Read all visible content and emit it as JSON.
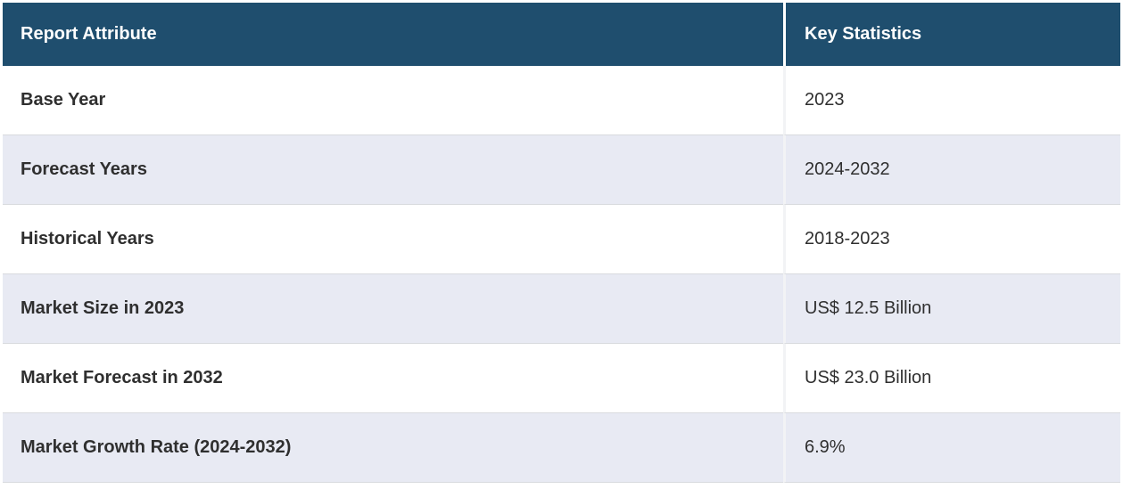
{
  "table": {
    "columns": [
      {
        "label": "Report Attribute"
      },
      {
        "label": "Key Statistics"
      }
    ],
    "rows": [
      {
        "attribute": "Base Year",
        "value": "2023"
      },
      {
        "attribute": "Forecast Years",
        "value": "2024-2032"
      },
      {
        "attribute": "Historical Years",
        "value": "2018-2023"
      },
      {
        "attribute": "Market Size in 2023",
        "value": "US$ 12.5 Billion"
      },
      {
        "attribute": "Market Forecast in 2032",
        "value": "US$ 23.0 Billion"
      },
      {
        "attribute": "Market Growth Rate (2024-2032)",
        "value": "6.9%"
      }
    ]
  },
  "colors": {
    "header_bg": "#1F4E6E",
    "header_text": "#FFFFFF",
    "row_bg": "#FFFFFF",
    "row_alt_bg": "#E8EAF3",
    "body_text": "#2F2F2F",
    "row_border": "#D8DADE",
    "col_divider": "#F2F3F5"
  }
}
